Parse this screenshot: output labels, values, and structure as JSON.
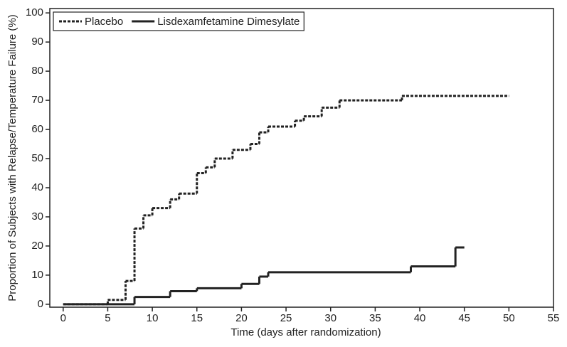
{
  "chart_data": {
    "type": "step",
    "x_label": "Time (days after randomization)",
    "y_label": "Proportion of Subjects with Relapse/Temperature Failure (%)",
    "xlim": [
      -1.5,
      55
    ],
    "ylim": [
      -1,
      101.5
    ],
    "xticks": [
      0,
      5,
      10,
      15,
      20,
      25,
      30,
      35,
      40,
      45,
      50,
      55
    ],
    "yticks": [
      0,
      10,
      20,
      30,
      40,
      50,
      60,
      70,
      80,
      90,
      100
    ],
    "legend": "upper left",
    "series": [
      {
        "name": "Placebo",
        "color": "#222222",
        "dash": true,
        "x": [
          0,
          5,
          7,
          8,
          9,
          10,
          12,
          13,
          15,
          16,
          17,
          19,
          21,
          22,
          23,
          26,
          27,
          29,
          31,
          38,
          50
        ],
        "values": [
          0,
          1.5,
          8,
          26,
          30.5,
          33,
          36,
          38,
          45,
          47,
          50,
          53,
          55,
          59,
          61,
          63,
          64.5,
          67.5,
          70,
          71.5,
          71.5
        ]
      },
      {
        "name": "Lisdexamfetamine Dimesylate",
        "color": "#222222",
        "dash": false,
        "x": [
          0,
          8,
          12,
          15,
          20,
          22,
          23,
          39,
          44,
          45
        ],
        "values": [
          0,
          2.5,
          4.5,
          5.5,
          7,
          9.5,
          11,
          13,
          19.5,
          19.5
        ]
      }
    ]
  }
}
